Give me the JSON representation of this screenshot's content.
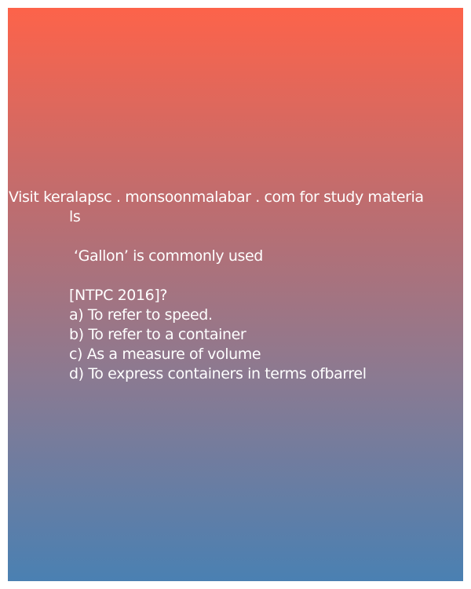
{
  "banner": {
    "line1": "Visit keralapsc . monsoonmalabar . com for study materia",
    "line2": "ls"
  },
  "question": {
    "text": "‘Gallon’ is commonly used",
    "source": "[NTPC 2016]?"
  },
  "options": [
    "a) To refer to speed.",
    "b) To refer to a container",
    "c) As a measure of volume",
    "d) To express containers in terms ofbarrel"
  ],
  "colors": {
    "gradient_top": "#fd634a",
    "gradient_bottom": "#4a80b2",
    "text": "#ffffff",
    "page_background": "#ffffff"
  }
}
